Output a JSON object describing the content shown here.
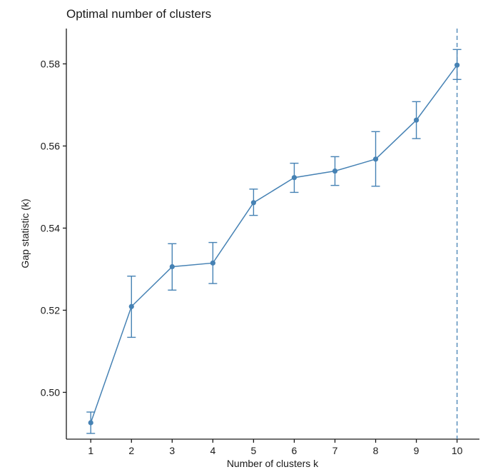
{
  "chart_data": {
    "type": "line",
    "title": "Optimal number of clusters",
    "xlabel": "Number of clusters k",
    "ylabel": "Gap statistic (k)",
    "x": [
      1,
      2,
      3,
      4,
      5,
      6,
      7,
      8,
      9,
      10
    ],
    "xticks": [
      "1",
      "2",
      "3",
      "4",
      "5",
      "6",
      "7",
      "8",
      "9",
      "10"
    ],
    "yticks": [
      "0.50",
      "0.52",
      "0.54",
      "0.56",
      "0.58"
    ],
    "ytick_values": [
      0.5,
      0.52,
      0.54,
      0.56,
      0.58
    ],
    "xlim": [
      0.4,
      10.55
    ],
    "ylim": [
      0.4886,
      0.5886
    ],
    "series": [
      {
        "values": [
          0.4926,
          0.5209,
          0.5306,
          0.5315,
          0.5462,
          0.5523,
          0.5539,
          0.5568,
          0.5663,
          0.5797
        ],
        "error_lower": [
          0.49,
          0.5134,
          0.5249,
          0.5265,
          0.5431,
          0.5487,
          0.5504,
          0.5502,
          0.5618,
          0.5762
        ],
        "error_upper": [
          0.4952,
          0.5283,
          0.5362,
          0.5365,
          0.5495,
          0.5558,
          0.5574,
          0.5635,
          0.5708,
          0.5835
        ],
        "color": "#4682B4"
      }
    ],
    "optimal_k": 10,
    "vline_color": "#4682B4",
    "vline_style": "dashed",
    "grid": false
  }
}
